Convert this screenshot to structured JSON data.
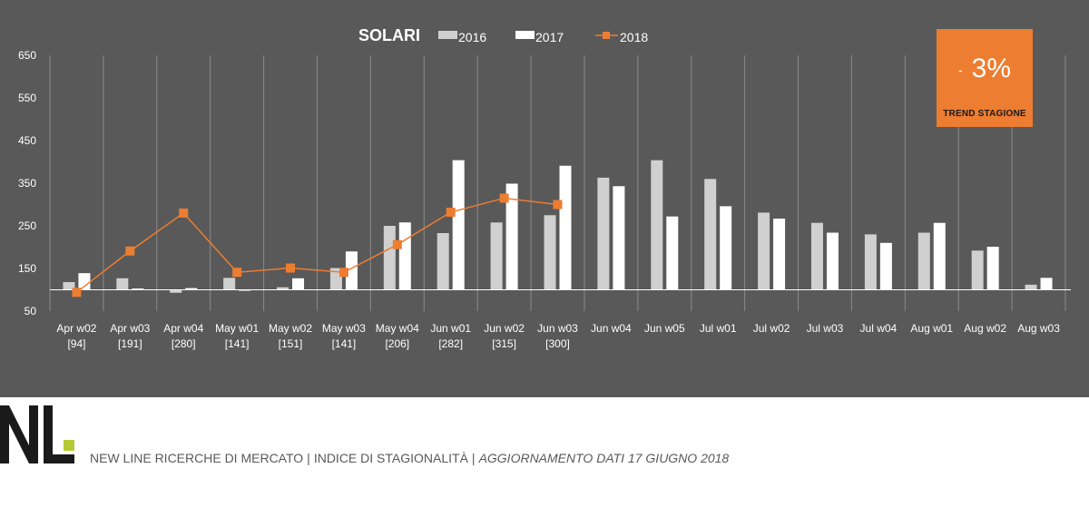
{
  "chart_data": {
    "type": "bar",
    "title": "SOLARI",
    "categories": [
      "Apr w02",
      "Apr w03",
      "Apr w04",
      "May w01",
      "May w02",
      "May w03",
      "May w04",
      "Jun w01",
      "Jun w02",
      "Jun w03",
      "Jun w04",
      "Jun w05",
      "Jul w01",
      "Jul w02",
      "Jul w03",
      "Jul w04",
      "Aug w01",
      "Aug w02",
      "Aug w03"
    ],
    "category_sublabels": [
      "[94]",
      "[191]",
      "[280]",
      "[141]",
      "[151]",
      "[141]",
      "[206]",
      "[282]",
      "[315]",
      "[300]",
      "",
      "",
      "",
      "",
      "",
      "",
      "",
      "",
      ""
    ],
    "series": [
      {
        "name": "2016",
        "type": "bar",
        "color": "#d0d0d0",
        "values": [
          118,
          127,
          93,
          128,
          106,
          151,
          250,
          233,
          258,
          275,
          363,
          404,
          360,
          281,
          257,
          230,
          234,
          192,
          112
        ]
      },
      {
        "name": "2017",
        "type": "bar",
        "color": "#ffffff",
        "values": [
          139,
          103,
          104,
          99,
          127,
          190,
          258,
          404,
          349,
          391,
          343,
          272,
          296,
          267,
          234,
          210,
          257,
          201,
          128
        ]
      },
      {
        "name": "2018",
        "type": "line",
        "color": "#ed7d31",
        "values": [
          94,
          191,
          280,
          141,
          151,
          141,
          206,
          282,
          315,
          300,
          null,
          null,
          null,
          null,
          null,
          null,
          null,
          null,
          null
        ]
      }
    ],
    "ylim": [
      50,
      650
    ],
    "yticks": [
      "50",
      "150",
      "250",
      "350",
      "450",
      "550",
      "650"
    ],
    "baseline": 100,
    "grid": "vertical",
    "legend_position": "top"
  },
  "trend": {
    "sign": "-",
    "value": "3%",
    "label": "TREND STAGIONE"
  },
  "footer": {
    "company": "NEW LINE RICERCHE DI MERCATO",
    "index": "INDICE DI STAGIONALITÀ",
    "update": "AGGIORNAMENTO DATI 17 GIUGNO 2018"
  },
  "logo": {
    "text": "NL",
    "accent_color": "#b5c934"
  }
}
